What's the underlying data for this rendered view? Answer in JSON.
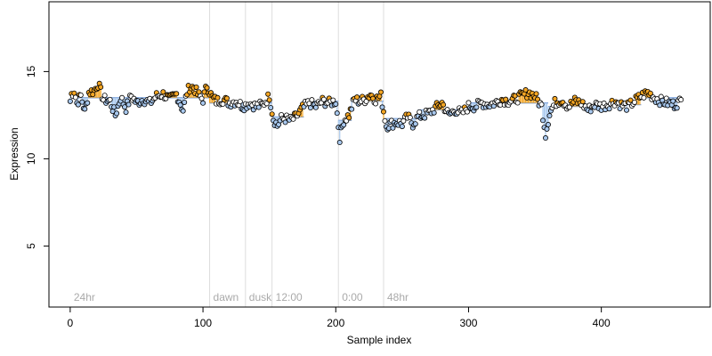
{
  "chart_data": {
    "type": "scatter",
    "xlabel": "Sample index",
    "ylabel": "Expression",
    "xlim": [
      -16,
      482
    ],
    "ylim": [
      1.5,
      19.0
    ],
    "x_ticks": [
      0,
      100,
      200,
      300,
      400
    ],
    "y_ticks": [
      5,
      10,
      15
    ],
    "grid": false,
    "marker_colors": {
      "above": "#f5a623",
      "below": "#a8c8ee",
      "segment": "#7a9fd9",
      "divider": "#dddddd",
      "segment_text": "#aaaaaa",
      "outline": "#000000"
    },
    "segments": [
      {
        "label": "24hr",
        "start": 0,
        "end": 105,
        "level": 13.5
      },
      {
        "label": "dawn",
        "start": 105,
        "end": 132,
        "level": 13.3
      },
      {
        "label": "dusk",
        "start": 132,
        "end": 152,
        "level": 13.2
      },
      {
        "label": "12:00",
        "start": 152,
        "end": 202,
        "level": 12.7
      },
      {
        "label": "0:00",
        "start": 202,
        "end": 236,
        "level": 13.2
      },
      {
        "label": "48hr",
        "start": 236,
        "end": 460,
        "level": 13.2
      }
    ],
    "sub_levels": [
      {
        "start": 0,
        "end": 105,
        "level": 13.5
      },
      {
        "start": 105,
        "end": 152,
        "level": 13.2
      },
      {
        "start": 152,
        "end": 176,
        "level": 12.4
      },
      {
        "start": 176,
        "end": 202,
        "level": 13.3
      },
      {
        "start": 202,
        "end": 212,
        "level": 12.2
      },
      {
        "start": 212,
        "end": 236,
        "level": 13.3
      },
      {
        "start": 236,
        "end": 262,
        "level": 12.3
      },
      {
        "start": 262,
        "end": 300,
        "level": 12.8
      },
      {
        "start": 300,
        "end": 360,
        "level": 13.2
      },
      {
        "start": 360,
        "end": 390,
        "level": 13.0
      },
      {
        "start": 390,
        "end": 430,
        "level": 13.1
      },
      {
        "start": 430,
        "end": 460,
        "level": 13.5
      }
    ],
    "anchors": [
      [
        1,
        13.7
      ],
      [
        3,
        13.9
      ],
      [
        5,
        13.2
      ],
      [
        8,
        13.6
      ],
      [
        11,
        12.7
      ],
      [
        14,
        13.8
      ],
      [
        18,
        13.9
      ],
      [
        21,
        14.3
      ],
      [
        25,
        13.4
      ],
      [
        30,
        13.3
      ],
      [
        34,
        12.5
      ],
      [
        38,
        13.5
      ],
      [
        42,
        12.9
      ],
      [
        46,
        13.6
      ],
      [
        50,
        13.2
      ],
      [
        55,
        13.4
      ],
      [
        60,
        13.2
      ],
      [
        65,
        13.6
      ],
      [
        70,
        13.7
      ],
      [
        75,
        13.4
      ],
      [
        80,
        13.7
      ],
      [
        85,
        12.8
      ],
      [
        88,
        13.8
      ],
      [
        90,
        14.1
      ],
      [
        93,
        14.1
      ],
      [
        96,
        13.7
      ],
      [
        100,
        13.4
      ],
      [
        103,
        14.2
      ],
      [
        107,
        13.5
      ],
      [
        110,
        13.3
      ],
      [
        115,
        13.4
      ],
      [
        120,
        13.2
      ],
      [
        125,
        13.3
      ],
      [
        130,
        13.0
      ],
      [
        135,
        13.2
      ],
      [
        140,
        13.0
      ],
      [
        145,
        13.1
      ],
      [
        150,
        13.6
      ],
      [
        153,
        12.3
      ],
      [
        156,
        11.9
      ],
      [
        159,
        12.3
      ],
      [
        162,
        12.3
      ],
      [
        166,
        12.2
      ],
      [
        170,
        12.4
      ],
      [
        175,
        12.9
      ],
      [
        180,
        13.2
      ],
      [
        185,
        13.0
      ],
      [
        190,
        13.3
      ],
      [
        195,
        13.2
      ],
      [
        200,
        13.3
      ],
      [
        203,
        11.2
      ],
      [
        206,
        12.2
      ],
      [
        210,
        12.5
      ],
      [
        214,
        13.4
      ],
      [
        218,
        13.3
      ],
      [
        222,
        13.4
      ],
      [
        226,
        13.7
      ],
      [
        230,
        13.4
      ],
      [
        234,
        13.6
      ],
      [
        238,
        11.9
      ],
      [
        242,
        12.0
      ],
      [
        246,
        12.1
      ],
      [
        250,
        12.0
      ],
      [
        254,
        12.4
      ],
      [
        258,
        12.0
      ],
      [
        262,
        12.4
      ],
      [
        266,
        12.5
      ],
      [
        270,
        12.6
      ],
      [
        275,
        12.9
      ],
      [
        280,
        13.2
      ],
      [
        285,
        12.5
      ],
      [
        290,
        12.8
      ],
      [
        295,
        12.6
      ],
      [
        300,
        13.0
      ],
      [
        305,
        13.0
      ],
      [
        310,
        13.2
      ],
      [
        315,
        13.1
      ],
      [
        320,
        13.2
      ],
      [
        325,
        13.4
      ],
      [
        330,
        13.3
      ],
      [
        335,
        13.4
      ],
      [
        340,
        13.6
      ],
      [
        345,
        13.8
      ],
      [
        350,
        13.6
      ],
      [
        355,
        13.0
      ],
      [
        358,
        11.4
      ],
      [
        361,
        12.6
      ],
      [
        365,
        13.2
      ],
      [
        370,
        13.4
      ],
      [
        375,
        13.0
      ],
      [
        380,
        13.3
      ],
      [
        385,
        13.2
      ],
      [
        390,
        12.8
      ],
      [
        395,
        13.1
      ],
      [
        400,
        13.0
      ],
      [
        405,
        13.1
      ],
      [
        410,
        13.3
      ],
      [
        415,
        13.1
      ],
      [
        420,
        13.0
      ],
      [
        425,
        13.3
      ],
      [
        430,
        13.6
      ],
      [
        435,
        13.8
      ],
      [
        440,
        13.5
      ],
      [
        445,
        13.3
      ],
      [
        450,
        13.2
      ],
      [
        455,
        13.1
      ],
      [
        460,
        13.3
      ]
    ]
  }
}
